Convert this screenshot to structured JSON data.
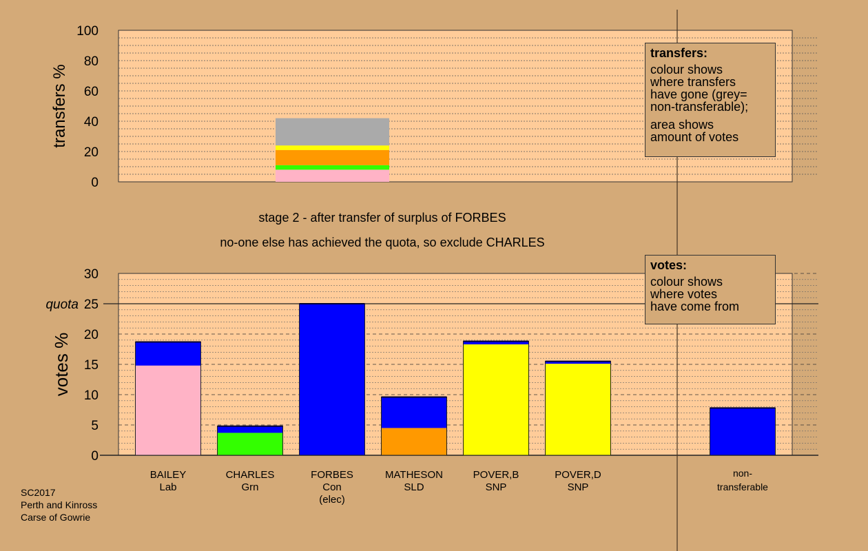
{
  "colors": {
    "background": "#d4aa78",
    "plot_bg": "#ffcc99",
    "Lab": "#ffb3c6",
    "Grn": "#33ff00",
    "Con": "#0000ff",
    "SLD": "#ff9900",
    "SNP": "#ffff00",
    "nontransferable": "#aaaaaa"
  },
  "captions": {
    "line1": "stage 2 - after transfer of surplus of FORBES",
    "line2": "no-one else has achieved the quota, so exclude CHARLES"
  },
  "legend_transfers": {
    "title": "transfers:",
    "para1": [
      "colour shows",
      "where transfers",
      "have gone (grey=",
      "non-transferable);"
    ],
    "para2": [
      "area shows",
      "amount of votes"
    ]
  },
  "legend_votes": {
    "title": "votes:",
    "para1": [
      "colour shows",
      "where votes",
      "have come from"
    ]
  },
  "footer": [
    "SC2017",
    "Perth and Kinross",
    "Carse of Gowrie"
  ],
  "chart_data": [
    {
      "type": "bar",
      "title": "",
      "ylabel": "transfers %",
      "ylim": [
        0,
        100
      ],
      "yticks": [
        0,
        20,
        40,
        60,
        80,
        100
      ],
      "grid": true,
      "bars": [
        {
          "from": "FORBES",
          "segments": [
            {
              "to": "BAILEY",
              "color": "Lab",
              "value": 8
            },
            {
              "to": "CHARLES",
              "color": "Grn",
              "value": 3
            },
            {
              "to": "MATHESON",
              "color": "SLD",
              "value": 10
            },
            {
              "to": "POVER,B",
              "color": "SNP",
              "value": 2
            },
            {
              "to": "POVER,D",
              "color": "SNP",
              "value": 1
            },
            {
              "to": "non-transferable",
              "color": "nontransferable",
              "value": 18
            }
          ]
        }
      ]
    },
    {
      "type": "bar",
      "stacked": true,
      "ylabel": "votes %",
      "ylim": [
        0,
        30
      ],
      "yticks": [
        0,
        5,
        10,
        15,
        20,
        25,
        30
      ],
      "quota": 25,
      "quota_label": "quota",
      "grid": true,
      "categories": [
        {
          "name": "BAILEY",
          "party": "Lab",
          "note": "",
          "segments": [
            {
              "color": "Lab",
              "value": 14.8
            },
            {
              "color": "Con",
              "value": 3.9
            }
          ]
        },
        {
          "name": "CHARLES",
          "party": "Grn",
          "note": "",
          "segments": [
            {
              "color": "Grn",
              "value": 3.7
            },
            {
              "color": "Con",
              "value": 1.1
            }
          ]
        },
        {
          "name": "FORBES",
          "party": "Con",
          "note": "(elec)",
          "segments": [
            {
              "color": "Con",
              "value": 25.0
            }
          ]
        },
        {
          "name": "MATHESON",
          "party": "SLD",
          "note": "",
          "segments": [
            {
              "color": "SLD",
              "value": 4.5
            },
            {
              "color": "Con",
              "value": 5.1
            }
          ]
        },
        {
          "name": "POVER,B",
          "party": "SNP",
          "note": "",
          "segments": [
            {
              "color": "SNP",
              "value": 18.3
            },
            {
              "color": "Con",
              "value": 0.5
            }
          ]
        },
        {
          "name": "POVER,D",
          "party": "SNP",
          "note": "",
          "segments": [
            {
              "color": "SNP",
              "value": 15.1
            },
            {
              "color": "Con",
              "value": 0.4
            }
          ]
        }
      ],
      "nontransferable": {
        "name": "non-",
        "party": "transferable",
        "segments": [
          {
            "color": "Con",
            "value": 7.8
          }
        ]
      }
    }
  ]
}
